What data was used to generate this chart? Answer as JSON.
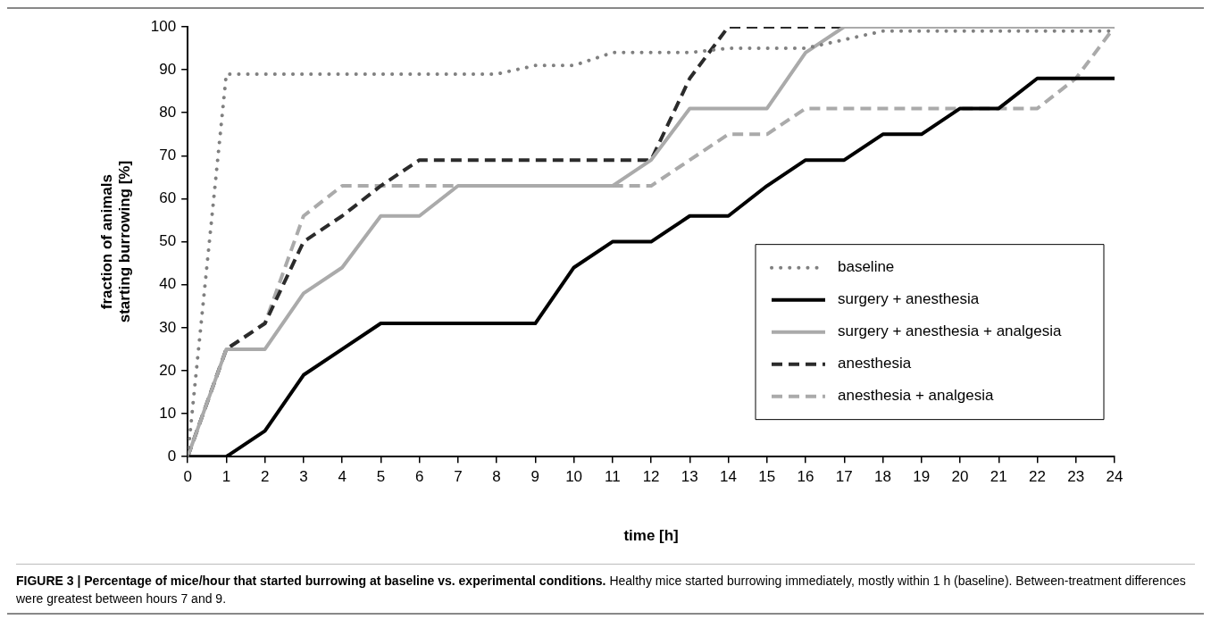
{
  "chart_data": {
    "type": "line",
    "xlabel": "time [h]",
    "ylabel": "fraction of animals starting burrowing [%]",
    "x": [
      0,
      1,
      2,
      3,
      4,
      5,
      6,
      7,
      8,
      9,
      10,
      11,
      12,
      13,
      14,
      15,
      16,
      17,
      18,
      19,
      20,
      21,
      22,
      23,
      24
    ],
    "xlim": [
      0,
      24
    ],
    "xticks": [
      0,
      1,
      2,
      3,
      4,
      5,
      6,
      7,
      8,
      9,
      10,
      11,
      12,
      13,
      14,
      15,
      16,
      17,
      18,
      19,
      20,
      21,
      22,
      23,
      24
    ],
    "ylim": [
      0,
      100
    ],
    "yticks": [
      0,
      10,
      20,
      30,
      40,
      50,
      60,
      70,
      80,
      90,
      100
    ],
    "grid": false,
    "legend": "right",
    "marker": "none",
    "series": [
      {
        "name": "baseline",
        "color": "#808080",
        "line_style": "dotted",
        "values": [
          0,
          89,
          89,
          89,
          89,
          89,
          89,
          89,
          89,
          91,
          91,
          94,
          94,
          94,
          95,
          95,
          95,
          97,
          99,
          99,
          99,
          99,
          99,
          99,
          99
        ]
      },
      {
        "name": "surgery + anesthesia",
        "color": "#000000",
        "line_style": "solid",
        "values": [
          0,
          0,
          6,
          19,
          25,
          31,
          31,
          31,
          31,
          31,
          44,
          50,
          50,
          56,
          56,
          63,
          69,
          69,
          75,
          75,
          81,
          81,
          88,
          88,
          88
        ]
      },
      {
        "name": "surgery + anesthesia + analgesia",
        "color": "#aaaaaa",
        "line_style": "solid",
        "values": [
          0,
          25,
          25,
          38,
          44,
          56,
          56,
          63,
          63,
          63,
          63,
          63,
          69,
          81,
          81,
          81,
          94,
          100,
          100,
          100,
          100,
          100,
          100,
          100,
          100
        ]
      },
      {
        "name": "anesthesia",
        "color": "#2b2b2b",
        "line_style": "dashed",
        "values": [
          0,
          25,
          31,
          50,
          56,
          63,
          69,
          69,
          69,
          69,
          69,
          69,
          69,
          88,
          100,
          100,
          100,
          100,
          100,
          100,
          100,
          100,
          100,
          100,
          100
        ]
      },
      {
        "name": "anesthesia + analgesia",
        "color": "#aaaaaa",
        "line_style": "dashed",
        "values": [
          0,
          25,
          31,
          56,
          63,
          63,
          63,
          63,
          63,
          63,
          63,
          63,
          63,
          69,
          75,
          75,
          81,
          81,
          81,
          81,
          81,
          81,
          81,
          88,
          100
        ]
      }
    ],
    "annotations": [
      "FIGURE 3 | Percentage of mice/hour that started burrowing at baseline vs. experimental conditions.",
      "Healthy mice started burrowing immediately, mostly within 1 h (baseline). Between-treatment differences were greatest between hours 7 and 9."
    ]
  }
}
